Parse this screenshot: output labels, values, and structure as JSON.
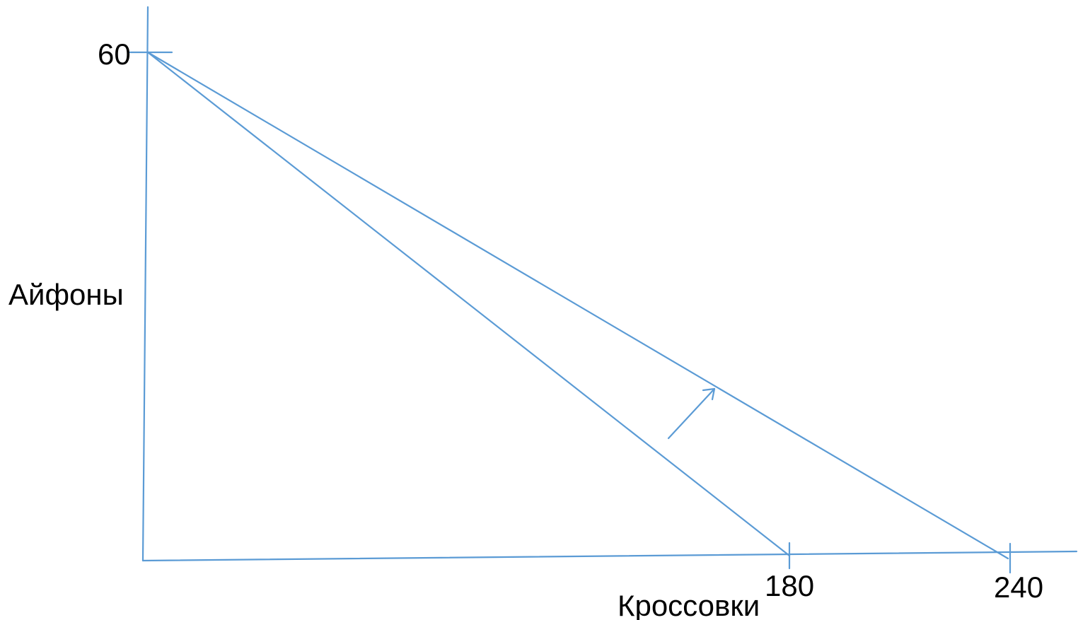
{
  "diagram": {
    "y_axis_label": "Айфоны",
    "x_axis_label": "Кроссовки",
    "y_tick": "60",
    "x_ticks": [
      "180",
      "240"
    ],
    "line_color": "#5b9bd5",
    "text_color": "#000000",
    "budget_lines": [
      {
        "x_intercept": 180,
        "y_intercept": 60
      },
      {
        "x_intercept": 240,
        "y_intercept": 60
      }
    ],
    "shift_arrow": "arrow-up-right-icon"
  }
}
